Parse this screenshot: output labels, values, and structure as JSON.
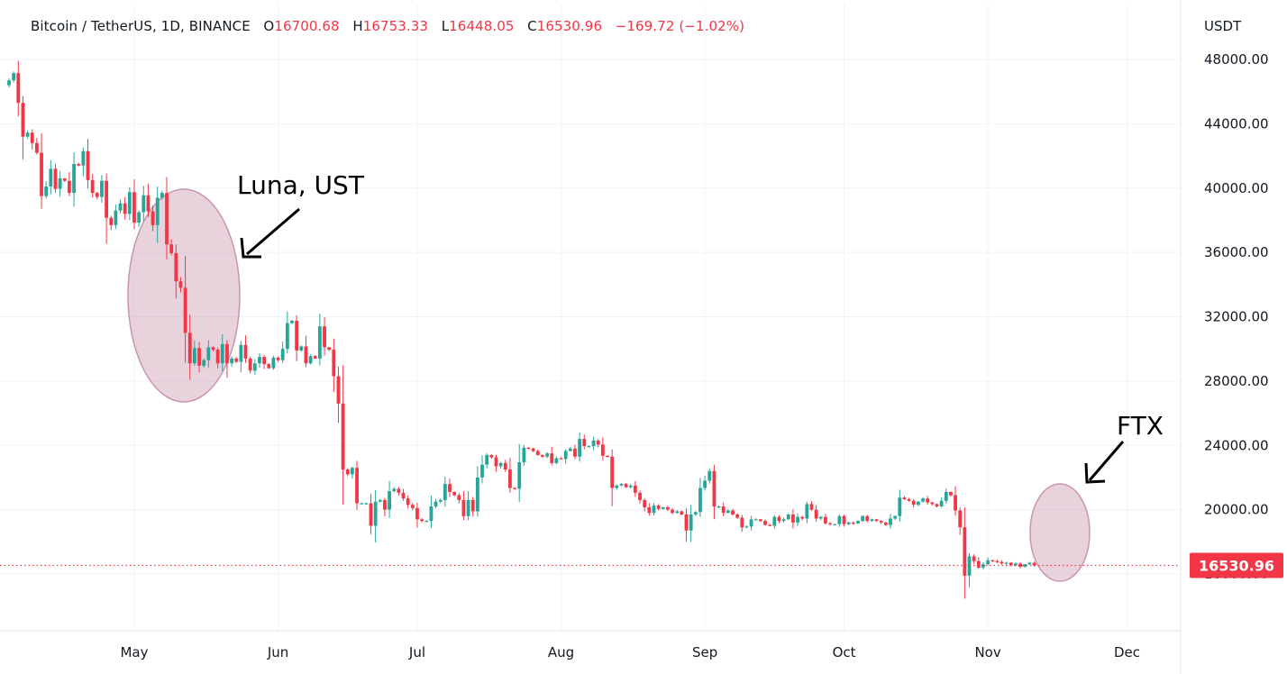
{
  "header": {
    "symbol": "Bitcoin / TetherUS, 1D, BINANCE",
    "open_label": "O",
    "open": "16700.68",
    "high_label": "H",
    "high": "16753.33",
    "low_label": "L",
    "low": "16448.05",
    "close_label": "C",
    "close": "16530.96",
    "change": "−169.72 (−1.02%)"
  },
  "currency": "USDT",
  "colors": {
    "up": "#26a69a",
    "down": "#f23645",
    "grid": "#f0f3fa",
    "highlight": "#c995ae"
  },
  "chart_data": {
    "type": "candlestick",
    "title": "Bitcoin / TetherUS, 1D, BINANCE",
    "y_ticks": [
      48000,
      44000,
      40000,
      36000,
      32000,
      28000,
      24000,
      20000,
      16000
    ],
    "y_tick_labels": [
      "48000.00",
      "44000.00",
      "40000.00",
      "36000.00",
      "32000.00",
      "28000.00",
      "24000.00",
      "20000.00",
      "16000.00"
    ],
    "ylim": [
      13000,
      49500
    ],
    "x_ticks": [
      "2022-05-01",
      "2022-06-01",
      "2022-07-01",
      "2022-08-01",
      "2022-09-01",
      "2022-10-01",
      "2022-11-01",
      "2022-12-01"
    ],
    "x_tick_labels": [
      "May",
      "Jun",
      "Jul",
      "Aug",
      "Sep",
      "Oct",
      "Nov",
      "Dec"
    ],
    "xlim": [
      "2022-04-04",
      "2022-12-11"
    ],
    "last_price": 16530.96,
    "last_price_label": "16530.96",
    "close_series": {
      "start": "2022-04-04",
      "values": [
        46700,
        47150,
        45300,
        43200,
        43450,
        42800,
        42200,
        39500,
        40100,
        41200,
        39950,
        40600,
        40450,
        39700,
        41500,
        41400,
        42300,
        40500,
        39700,
        39450,
        40450,
        38150,
        37700,
        38600,
        39050,
        38400,
        39750,
        37850,
        38500,
        39550,
        38550,
        37700,
        39400,
        39700,
        36500,
        35950,
        34200,
        33800,
        31000,
        29100,
        30050,
        28950,
        29300,
        30100,
        29950,
        29100,
        30300,
        29100,
        29400,
        29200,
        30250,
        29400,
        28650,
        29100,
        29500,
        29050,
        28800,
        29450,
        29300,
        30000,
        31600,
        31750,
        29900,
        30150,
        29100,
        29550,
        29400,
        31400,
        30100,
        29950,
        28300,
        26600,
        22500,
        22200,
        22600,
        20400,
        20400,
        20400,
        19000,
        20500,
        20600,
        20000,
        21150,
        21300,
        21050,
        20700,
        20300,
        20100,
        19400,
        19300,
        19300,
        20200,
        20500,
        20600,
        21600,
        21100,
        20900,
        20600,
        19600,
        20600,
        19900,
        22000,
        22800,
        23400,
        23250,
        22700,
        22900,
        22500,
        21350,
        21300,
        22950,
        23850,
        23800,
        23650,
        23400,
        23300,
        23500,
        22900,
        23200,
        23150,
        23650,
        23800,
        23300,
        24400,
        23950,
        23950,
        24300,
        24050,
        23350,
        23300,
        21350,
        21500,
        21600,
        21400,
        21500,
        21050,
        20600,
        20150,
        19800,
        20250,
        20050,
        20150,
        20000,
        19800,
        19900,
        19700,
        18700,
        19700,
        19850,
        21350,
        21800,
        22400,
        20200,
        20200,
        19800,
        19950,
        19700,
        19500,
        18900,
        18950,
        19400,
        19400,
        19300,
        19050,
        19000,
        19550,
        19300,
        19400,
        19700,
        19200,
        19550,
        19450,
        20350,
        20000,
        19450,
        19550,
        19150,
        19100,
        19100,
        19600,
        19100,
        19200,
        19150,
        19300,
        19600,
        19300,
        19400,
        19300,
        19200,
        19050,
        19450,
        19600,
        20750,
        20650,
        20550,
        20300,
        20500,
        20700,
        20450,
        20350,
        20200,
        20550,
        21100,
        20900,
        19950,
        18900,
        15900,
        17100,
        16800,
        16400,
        16600,
        16850,
        16800,
        16750,
        16650,
        16700,
        16550,
        16650,
        16450,
        16600,
        16700,
        16530.96
      ]
    },
    "annotations": [
      {
        "text": "Luna, UST",
        "points_to": "2022-05-08"
      },
      {
        "text": "FTX",
        "points_to": "2022-11-08"
      }
    ]
  }
}
